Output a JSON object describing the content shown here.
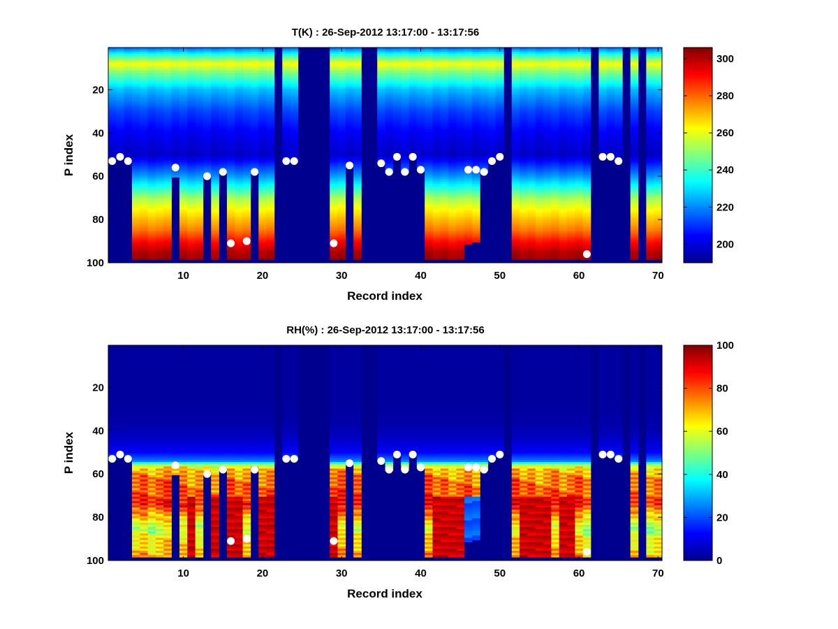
{
  "chart_data": [
    {
      "type": "heatmap",
      "title": "T(K) : 26-Sep-2012 13:17:00 - 13:17:56",
      "xlabel": "Record index",
      "ylabel": "P index",
      "xlim": [
        0.5,
        70.5
      ],
      "ylim": [
        100,
        0.5
      ],
      "y_reversed": true,
      "xticks": [
        10,
        20,
        30,
        40,
        50,
        60,
        70
      ],
      "yticks": [
        20,
        40,
        60,
        80,
        100
      ],
      "colormap": "jet",
      "clim": [
        190,
        306
      ],
      "colorbar_ticks": [
        200,
        220,
        240,
        260,
        280,
        300
      ],
      "fill_value_color": "#00008f",
      "profile_note": "Layer values per P index segment for valid records",
      "profile_p": [
        1,
        4,
        8,
        12,
        20,
        30,
        40,
        50,
        60,
        65,
        70,
        75,
        80,
        85,
        90,
        95,
        98
      ],
      "profile_value": [
        218,
        238,
        262,
        248,
        226,
        212,
        203,
        198,
        222,
        236,
        252,
        262,
        270,
        278,
        290,
        300,
        302
      ],
      "records": [
        {
          "x": 1,
          "bottom": 53
        },
        {
          "x": 2,
          "bottom": 51
        },
        {
          "x": 3,
          "bottom": 53
        },
        {
          "x": 4,
          "bottom": 98
        },
        {
          "x": 5,
          "bottom": 98
        },
        {
          "x": 6,
          "bottom": 98
        },
        {
          "x": 7,
          "bottom": 98
        },
        {
          "x": 8,
          "bottom": 98
        },
        {
          "x": 9,
          "bottom": 60
        },
        {
          "x": 10,
          "bottom": 98
        },
        {
          "x": 11,
          "bottom": 98
        },
        {
          "x": 12,
          "bottom": 98
        },
        {
          "x": 13,
          "bottom": 59
        },
        {
          "x": 14,
          "bottom": 98
        },
        {
          "x": 15,
          "bottom": 58
        },
        {
          "x": 16,
          "bottom": 98
        },
        {
          "x": 17,
          "bottom": 98
        },
        {
          "x": 18,
          "bottom": 98
        },
        {
          "x": 19,
          "bottom": 58
        },
        {
          "x": 20,
          "bottom": 98
        },
        {
          "x": 21,
          "bottom": 98
        },
        {
          "x": 22,
          "bottom": 0
        },
        {
          "x": 23,
          "bottom": 53
        },
        {
          "x": 24,
          "bottom": 53
        },
        {
          "x": 25,
          "bottom": 0
        },
        {
          "x": 26,
          "bottom": 0
        },
        {
          "x": 27,
          "bottom": 0
        },
        {
          "x": 28,
          "bottom": 0
        },
        {
          "x": 29,
          "bottom": 98
        },
        {
          "x": 30,
          "bottom": 98
        },
        {
          "x": 31,
          "bottom": 55
        },
        {
          "x": 32,
          "bottom": 98
        },
        {
          "x": 33,
          "bottom": 0
        },
        {
          "x": 34,
          "bottom": 0
        },
        {
          "x": 35,
          "bottom": 54
        },
        {
          "x": 36,
          "bottom": 58
        },
        {
          "x": 37,
          "bottom": 51
        },
        {
          "x": 38,
          "bottom": 58
        },
        {
          "x": 39,
          "bottom": 51
        },
        {
          "x": 40,
          "bottom": 57
        },
        {
          "x": 41,
          "bottom": 98
        },
        {
          "x": 42,
          "bottom": 98
        },
        {
          "x": 43,
          "bottom": 98
        },
        {
          "x": 44,
          "bottom": 98
        },
        {
          "x": 45,
          "bottom": 98
        },
        {
          "x": 46,
          "bottom": 91
        },
        {
          "x": 47,
          "bottom": 90
        },
        {
          "x": 48,
          "bottom": 58
        },
        {
          "x": 49,
          "bottom": 53
        },
        {
          "x": 50,
          "bottom": 51
        },
        {
          "x": 51,
          "bottom": 0
        },
        {
          "x": 52,
          "bottom": 98
        },
        {
          "x": 53,
          "bottom": 98
        },
        {
          "x": 54,
          "bottom": 98
        },
        {
          "x": 55,
          "bottom": 98
        },
        {
          "x": 56,
          "bottom": 98
        },
        {
          "x": 57,
          "bottom": 98
        },
        {
          "x": 58,
          "bottom": 98
        },
        {
          "x": 59,
          "bottom": 98
        },
        {
          "x": 60,
          "bottom": 98
        },
        {
          "x": 61,
          "bottom": 98
        },
        {
          "x": 62,
          "bottom": 0
        },
        {
          "x": 63,
          "bottom": 51
        },
        {
          "x": 64,
          "bottom": 51
        },
        {
          "x": 65,
          "bottom": 53
        },
        {
          "x": 66,
          "bottom": 0
        },
        {
          "x": 67,
          "bottom": 98
        },
        {
          "x": 68,
          "bottom": 0
        },
        {
          "x": 69,
          "bottom": 98
        },
        {
          "x": 70,
          "bottom": 98
        }
      ],
      "markers": [
        [
          1,
          53
        ],
        [
          2,
          51
        ],
        [
          3,
          53
        ],
        [
          9,
          56
        ],
        [
          13,
          60
        ],
        [
          15,
          58
        ],
        [
          16,
          91
        ],
        [
          18,
          90
        ],
        [
          19,
          58
        ],
        [
          23,
          53
        ],
        [
          24,
          53
        ],
        [
          29,
          91
        ],
        [
          31,
          55
        ],
        [
          35,
          54
        ],
        [
          36,
          58
        ],
        [
          37,
          51
        ],
        [
          38,
          58
        ],
        [
          39,
          51
        ],
        [
          40,
          57
        ],
        [
          46,
          57
        ],
        [
          47,
          57
        ],
        [
          48,
          58
        ],
        [
          49,
          53
        ],
        [
          50,
          51
        ],
        [
          61,
          96
        ],
        [
          63,
          51
        ],
        [
          64,
          51
        ],
        [
          65,
          53
        ]
      ]
    },
    {
      "type": "heatmap",
      "title": "RH(%) : 26-Sep-2012 13:17:00 - 13:17:56",
      "xlabel": "Record index",
      "ylabel": "P index",
      "xlim": [
        0.5,
        70.5
      ],
      "ylim": [
        100,
        0.5
      ],
      "y_reversed": true,
      "xticks": [
        10,
        20,
        30,
        40,
        50,
        60,
        70
      ],
      "yticks": [
        20,
        40,
        60,
        80,
        100
      ],
      "colormap": "jet",
      "clim": [
        0,
        100
      ],
      "colorbar_ticks": [
        0,
        20,
        40,
        60,
        80,
        100
      ],
      "fill_value_color": "#00008f",
      "profile_note": "Layer values per P index segment for valid records",
      "profile_p": [
        1,
        30,
        40,
        45,
        50,
        54,
        56,
        58,
        62,
        66,
        70,
        74,
        78,
        82,
        86,
        90,
        94,
        98
      ],
      "profile_value": [
        3,
        3,
        5,
        8,
        12,
        25,
        55,
        68,
        75,
        78,
        80,
        84,
        72,
        60,
        55,
        62,
        65,
        70
      ],
      "wet_records": [
        11,
        14,
        16,
        17,
        20,
        21,
        29,
        42,
        43,
        44,
        45,
        53,
        54,
        55,
        56,
        58,
        59
      ],
      "dry_records": [
        46,
        47
      ],
      "records": [
        {
          "x": 1,
          "bottom": 53
        },
        {
          "x": 2,
          "bottom": 51
        },
        {
          "x": 3,
          "bottom": 53
        },
        {
          "x": 4,
          "bottom": 98
        },
        {
          "x": 5,
          "bottom": 98
        },
        {
          "x": 6,
          "bottom": 98
        },
        {
          "x": 7,
          "bottom": 98
        },
        {
          "x": 8,
          "bottom": 98
        },
        {
          "x": 9,
          "bottom": 60
        },
        {
          "x": 10,
          "bottom": 98
        },
        {
          "x": 11,
          "bottom": 98
        },
        {
          "x": 12,
          "bottom": 98
        },
        {
          "x": 13,
          "bottom": 59
        },
        {
          "x": 14,
          "bottom": 98
        },
        {
          "x": 15,
          "bottom": 58
        },
        {
          "x": 16,
          "bottom": 98
        },
        {
          "x": 17,
          "bottom": 98
        },
        {
          "x": 18,
          "bottom": 98
        },
        {
          "x": 19,
          "bottom": 58
        },
        {
          "x": 20,
          "bottom": 98
        },
        {
          "x": 21,
          "bottom": 98
        },
        {
          "x": 22,
          "bottom": 0
        },
        {
          "x": 23,
          "bottom": 53
        },
        {
          "x": 24,
          "bottom": 53
        },
        {
          "x": 25,
          "bottom": 0
        },
        {
          "x": 26,
          "bottom": 0
        },
        {
          "x": 27,
          "bottom": 0
        },
        {
          "x": 28,
          "bottom": 0
        },
        {
          "x": 29,
          "bottom": 98
        },
        {
          "x": 30,
          "bottom": 98
        },
        {
          "x": 31,
          "bottom": 55
        },
        {
          "x": 32,
          "bottom": 98
        },
        {
          "x": 33,
          "bottom": 0
        },
        {
          "x": 34,
          "bottom": 0
        },
        {
          "x": 35,
          "bottom": 54
        },
        {
          "x": 36,
          "bottom": 58
        },
        {
          "x": 37,
          "bottom": 51
        },
        {
          "x": 38,
          "bottom": 58
        },
        {
          "x": 39,
          "bottom": 51
        },
        {
          "x": 40,
          "bottom": 57
        },
        {
          "x": 41,
          "bottom": 98
        },
        {
          "x": 42,
          "bottom": 98
        },
        {
          "x": 43,
          "bottom": 98
        },
        {
          "x": 44,
          "bottom": 98
        },
        {
          "x": 45,
          "bottom": 98
        },
        {
          "x": 46,
          "bottom": 91
        },
        {
          "x": 47,
          "bottom": 90
        },
        {
          "x": 48,
          "bottom": 58
        },
        {
          "x": 49,
          "bottom": 53
        },
        {
          "x": 50,
          "bottom": 51
        },
        {
          "x": 51,
          "bottom": 0
        },
        {
          "x": 52,
          "bottom": 98
        },
        {
          "x": 53,
          "bottom": 98
        },
        {
          "x": 54,
          "bottom": 98
        },
        {
          "x": 55,
          "bottom": 98
        },
        {
          "x": 56,
          "bottom": 98
        },
        {
          "x": 57,
          "bottom": 98
        },
        {
          "x": 58,
          "bottom": 98
        },
        {
          "x": 59,
          "bottom": 98
        },
        {
          "x": 60,
          "bottom": 98
        },
        {
          "x": 61,
          "bottom": 98
        },
        {
          "x": 62,
          "bottom": 0
        },
        {
          "x": 63,
          "bottom": 51
        },
        {
          "x": 64,
          "bottom": 51
        },
        {
          "x": 65,
          "bottom": 53
        },
        {
          "x": 66,
          "bottom": 0
        },
        {
          "x": 67,
          "bottom": 98
        },
        {
          "x": 68,
          "bottom": 0
        },
        {
          "x": 69,
          "bottom": 98
        },
        {
          "x": 70,
          "bottom": 98
        }
      ],
      "markers": [
        [
          1,
          53
        ],
        [
          2,
          51
        ],
        [
          3,
          53
        ],
        [
          9,
          56
        ],
        [
          13,
          60
        ],
        [
          15,
          58
        ],
        [
          16,
          91
        ],
        [
          18,
          90
        ],
        [
          19,
          58
        ],
        [
          23,
          53
        ],
        [
          24,
          53
        ],
        [
          29,
          91
        ],
        [
          31,
          55
        ],
        [
          35,
          54
        ],
        [
          36,
          58
        ],
        [
          37,
          51
        ],
        [
          38,
          58
        ],
        [
          39,
          51
        ],
        [
          40,
          57
        ],
        [
          46,
          57
        ],
        [
          47,
          57
        ],
        [
          48,
          58
        ],
        [
          49,
          53
        ],
        [
          50,
          51
        ],
        [
          61,
          96
        ],
        [
          63,
          51
        ],
        [
          64,
          51
        ],
        [
          65,
          53
        ]
      ]
    }
  ]
}
